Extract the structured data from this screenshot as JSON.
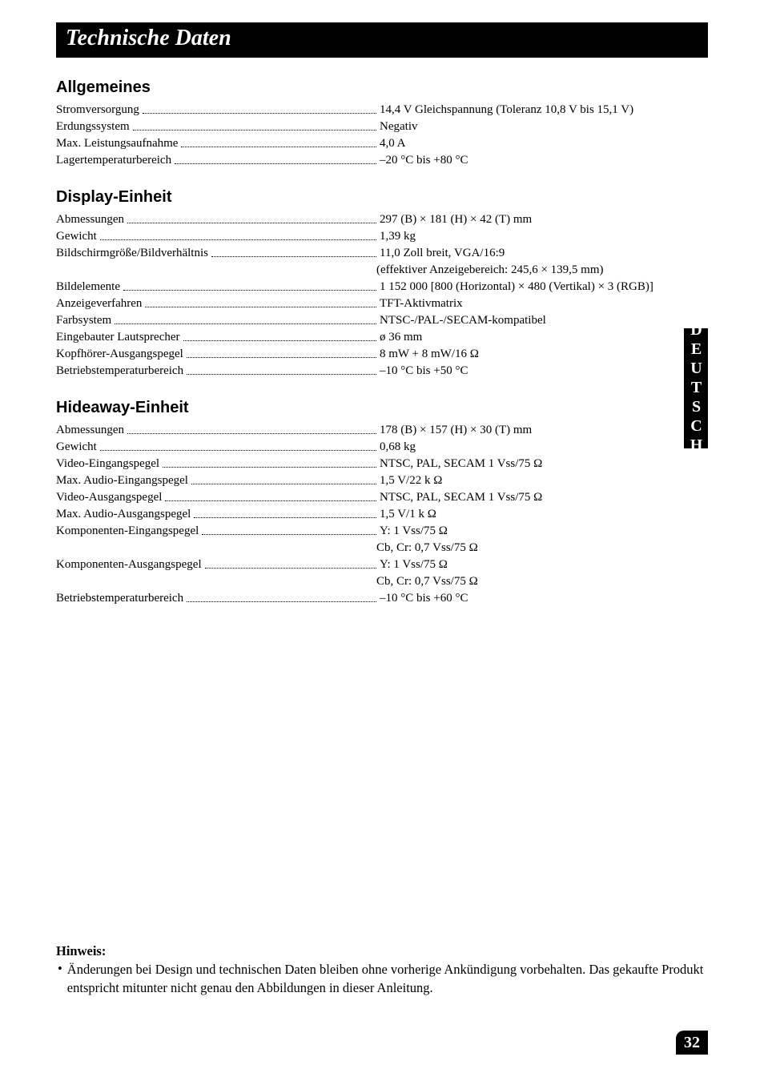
{
  "title": "Technische Daten",
  "sideTab": "DEUTSCH",
  "pageNumber": "32",
  "sections": [
    {
      "heading": "Allgemeines",
      "rows": [
        {
          "label": "Stromversorgung",
          "value": "14,4 V Gleichspannung (Toleranz 10,8 V bis 15,1 V)"
        },
        {
          "label": "Erdungssystem",
          "value": "Negativ"
        },
        {
          "label": "Max. Leistungsaufnahme",
          "value": "4,0 A"
        },
        {
          "label": "Lagertemperaturbereich",
          "value": "–20 °C bis +80 °C"
        }
      ]
    },
    {
      "heading": "Display-Einheit",
      "rows": [
        {
          "label": "Abmessungen",
          "value": "297 (B) × 181 (H) × 42 (T) mm"
        },
        {
          "label": "Gewicht",
          "value": "1,39 kg"
        },
        {
          "label": "Bildschirmgröße/Bildverhältnis",
          "value": "11,0 Zoll breit, VGA/16:9",
          "cont": "(effektiver Anzeigebereich: 245,6 × 139,5 mm)"
        },
        {
          "label": "Bildelemente",
          "value": "1 152 000 [800 (Horizontal) × 480 (Vertikal) × 3 (RGB)]"
        },
        {
          "label": "Anzeigeverfahren",
          "value": "TFT-Aktivmatrix"
        },
        {
          "label": "Farbsystem",
          "value": "NTSC-/PAL-/SECAM-kompatibel"
        },
        {
          "label": "Eingebauter Lautsprecher",
          "value": "ø 36 mm"
        },
        {
          "label": "Kopfhörer-Ausgangspegel",
          "value": "8 mW + 8 mW/16 Ω"
        },
        {
          "label": "Betriebstemperaturbereich",
          "value": "–10 °C bis +50 °C"
        }
      ]
    },
    {
      "heading": "Hideaway-Einheit",
      "rows": [
        {
          "label": "Abmessungen",
          "value": "178 (B) × 157 (H) × 30 (T) mm"
        },
        {
          "label": "Gewicht",
          "value": "0,68 kg"
        },
        {
          "label": "Video-Eingangspegel",
          "value": "NTSC, PAL, SECAM 1 Vss/75 Ω"
        },
        {
          "label": "Max. Audio-Eingangspegel",
          "value": "1,5 V/22 k Ω"
        },
        {
          "label": "Video-Ausgangspegel",
          "value": "NTSC, PAL, SECAM 1 Vss/75 Ω"
        },
        {
          "label": "Max. Audio-Ausgangspegel",
          "value": "1,5 V/1 k Ω"
        },
        {
          "label": "Komponenten-Eingangspegel",
          "value": "Y: 1 Vss/75 Ω",
          "cont": "Cb, Cr: 0,7 Vss/75 Ω"
        },
        {
          "label": "Komponenten-Ausgangspegel",
          "value": "Y: 1 Vss/75 Ω",
          "cont": "Cb, Cr: 0,7 Vss/75 Ω"
        },
        {
          "label": "Betriebstemperaturbereich",
          "value": "–10 °C bis +60 °C"
        }
      ]
    }
  ],
  "note": {
    "title": "Hinweis:",
    "bullet": "•",
    "text": "Änderungen bei Design und technischen Daten bleiben ohne vorherige Ankündigung vorbehalten. Das gekaufte Produkt entspricht mitunter nicht genau den Abbildungen in dieser Anleitung."
  }
}
